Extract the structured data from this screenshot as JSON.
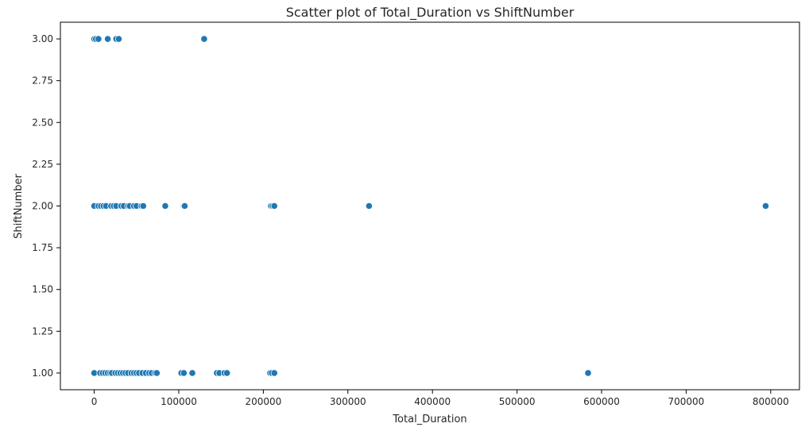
{
  "chart_data": {
    "type": "scatter",
    "title": "Scatter plot of Total_Duration vs ShiftNumber",
    "xlabel": "Total_Duration",
    "ylabel": "ShiftNumber",
    "xlim": [
      -40000,
      834000
    ],
    "ylim": [
      0.9,
      3.1
    ],
    "xticks": [
      0,
      100000,
      200000,
      300000,
      400000,
      500000,
      600000,
      700000,
      800000
    ],
    "xtick_labels": [
      "0",
      "100000",
      "200000",
      "300000",
      "400000",
      "500000",
      "600000",
      "700000",
      "800000"
    ],
    "yticks": [
      1.0,
      1.25,
      1.5,
      1.75,
      2.0,
      2.25,
      2.5,
      2.75,
      3.0
    ],
    "ytick_labels": [
      "1.00",
      "1.25",
      "1.50",
      "1.75",
      "2.00",
      "2.25",
      "2.50",
      "2.75",
      "3.00"
    ],
    "grid": false,
    "marker_color": "#1f77b4",
    "marker_edge_color": "#ffffff",
    "points": [
      {
        "x": 0,
        "y": 3
      },
      {
        "x": 2000,
        "y": 3
      },
      {
        "x": 5000,
        "y": 3
      },
      {
        "x": 16000,
        "y": 3
      },
      {
        "x": 26000,
        "y": 3
      },
      {
        "x": 29000,
        "y": 3
      },
      {
        "x": 130000,
        "y": 3
      },
      {
        "x": 0,
        "y": 2
      },
      {
        "x": 5000,
        "y": 2
      },
      {
        "x": 8000,
        "y": 2
      },
      {
        "x": 11000,
        "y": 2
      },
      {
        "x": 14000,
        "y": 2
      },
      {
        "x": 20000,
        "y": 2
      },
      {
        "x": 23000,
        "y": 2
      },
      {
        "x": 26000,
        "y": 2
      },
      {
        "x": 32000,
        "y": 2
      },
      {
        "x": 35000,
        "y": 2
      },
      {
        "x": 40000,
        "y": 2
      },
      {
        "x": 42000,
        "y": 2
      },
      {
        "x": 47000,
        "y": 2
      },
      {
        "x": 50000,
        "y": 2
      },
      {
        "x": 56000,
        "y": 2
      },
      {
        "x": 58000,
        "y": 2
      },
      {
        "x": 84000,
        "y": 2
      },
      {
        "x": 106000,
        "y": 2
      },
      {
        "x": 107000,
        "y": 2
      },
      {
        "x": 209000,
        "y": 2
      },
      {
        "x": 211000,
        "y": 2
      },
      {
        "x": 213000,
        "y": 2
      },
      {
        "x": 325000,
        "y": 2
      },
      {
        "x": 794000,
        "y": 2
      },
      {
        "x": 0,
        "y": 1
      },
      {
        "x": 7000,
        "y": 1
      },
      {
        "x": 10000,
        "y": 1
      },
      {
        "x": 13000,
        "y": 1
      },
      {
        "x": 16000,
        "y": 1
      },
      {
        "x": 19000,
        "y": 1
      },
      {
        "x": 21000,
        "y": 1
      },
      {
        "x": 25000,
        "y": 1
      },
      {
        "x": 28000,
        "y": 1
      },
      {
        "x": 31000,
        "y": 1
      },
      {
        "x": 34000,
        "y": 1
      },
      {
        "x": 37000,
        "y": 1
      },
      {
        "x": 40000,
        "y": 1
      },
      {
        "x": 44000,
        "y": 1
      },
      {
        "x": 47000,
        "y": 1
      },
      {
        "x": 50000,
        "y": 1
      },
      {
        "x": 53000,
        "y": 1
      },
      {
        "x": 57000,
        "y": 1
      },
      {
        "x": 61000,
        "y": 1
      },
      {
        "x": 65000,
        "y": 1
      },
      {
        "x": 68000,
        "y": 1
      },
      {
        "x": 72000,
        "y": 1
      },
      {
        "x": 74000,
        "y": 1
      },
      {
        "x": 103000,
        "y": 1
      },
      {
        "x": 106000,
        "y": 1
      },
      {
        "x": 116000,
        "y": 1
      },
      {
        "x": 145000,
        "y": 1
      },
      {
        "x": 148000,
        "y": 1
      },
      {
        "x": 154000,
        "y": 1
      },
      {
        "x": 157000,
        "y": 1
      },
      {
        "x": 208000,
        "y": 1
      },
      {
        "x": 210000,
        "y": 1
      },
      {
        "x": 213000,
        "y": 1
      },
      {
        "x": 584000,
        "y": 1
      }
    ]
  }
}
